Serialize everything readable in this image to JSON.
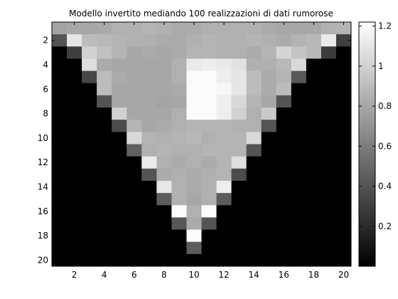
{
  "chart_data": {
    "type": "heatmap",
    "title": "Modello invertito mediando 100 realizzazioni di dati rumorose",
    "xlabel": "",
    "ylabel": "",
    "colormap": "gray",
    "nrows": 20,
    "ncols": 20,
    "xlim": [
      0.5,
      20.5
    ],
    "ylim": [
      0.5,
      20.5
    ],
    "y_axis_direction": "reversed",
    "x_ticks": [
      2,
      4,
      6,
      8,
      10,
      12,
      14,
      16,
      18,
      20
    ],
    "y_ticks": [
      2,
      4,
      6,
      8,
      10,
      12,
      14,
      16,
      18,
      20
    ],
    "clim": [
      0,
      1.22
    ],
    "colorbar": {
      "ticks": [
        0.2,
        0.4,
        0.6,
        0.8,
        1,
        1.2
      ],
      "placement": "right"
    },
    "values": [
      [
        0.78,
        0.8,
        0.8,
        0.82,
        0.84,
        0.84,
        0.86,
        0.84,
        0.82,
        0.82,
        0.84,
        0.84,
        0.84,
        0.84,
        0.82,
        0.8,
        0.8,
        0.8,
        0.84,
        0.86
      ],
      [
        0.4,
        1.1,
        0.9,
        0.88,
        0.86,
        0.84,
        0.84,
        0.82,
        0.82,
        0.84,
        0.86,
        0.84,
        0.84,
        0.86,
        0.84,
        0.82,
        0.86,
        0.88,
        1.12,
        0.3
      ],
      [
        0.0,
        0.3,
        1.0,
        0.92,
        0.86,
        0.8,
        0.82,
        0.8,
        0.82,
        0.86,
        0.86,
        0.84,
        0.84,
        0.82,
        0.86,
        1.02,
        0.94,
        0.88,
        0.28,
        0.0
      ],
      [
        0.0,
        0.0,
        1.06,
        0.82,
        0.8,
        0.8,
        0.8,
        0.8,
        0.84,
        1.12,
        1.14,
        1.12,
        1.08,
        0.84,
        0.84,
        0.88,
        1.04,
        0.0,
        0.0,
        0.0
      ],
      [
        0.0,
        0.0,
        0.34,
        0.9,
        0.82,
        0.8,
        0.8,
        0.8,
        0.84,
        1.2,
        1.2,
        1.14,
        1.1,
        0.9,
        0.82,
        0.86,
        0.42,
        0.0,
        0.0,
        0.0
      ],
      [
        0.0,
        0.0,
        0.0,
        0.9,
        0.8,
        0.8,
        0.8,
        0.8,
        0.82,
        1.2,
        1.2,
        1.18,
        1.1,
        0.9,
        0.82,
        0.9,
        0.0,
        0.0,
        0.0,
        0.0
      ],
      [
        0.0,
        0.0,
        0.0,
        0.4,
        0.8,
        0.8,
        0.8,
        0.78,
        0.8,
        1.2,
        1.2,
        1.14,
        1.04,
        0.86,
        0.8,
        0.4,
        0.0,
        0.0,
        0.0,
        0.0
      ],
      [
        0.0,
        0.0,
        0.0,
        0.0,
        1.0,
        0.8,
        0.8,
        0.8,
        0.84,
        1.2,
        1.2,
        1.14,
        1.0,
        0.84,
        0.96,
        0.0,
        0.0,
        0.0,
        0.0,
        0.0
      ],
      [
        0.0,
        0.0,
        0.0,
        0.0,
        0.36,
        0.86,
        0.8,
        0.82,
        0.84,
        0.86,
        0.86,
        0.86,
        0.84,
        0.84,
        0.4,
        0.0,
        0.0,
        0.0,
        0.0,
        0.0
      ],
      [
        0.0,
        0.0,
        0.0,
        0.0,
        0.0,
        1.04,
        0.86,
        0.84,
        0.86,
        0.88,
        0.84,
        0.86,
        0.86,
        1.04,
        0.0,
        0.0,
        0.0,
        0.0,
        0.0,
        0.0
      ],
      [
        0.0,
        0.0,
        0.0,
        0.0,
        0.0,
        0.46,
        0.84,
        0.86,
        0.84,
        0.84,
        0.86,
        0.86,
        0.86,
        0.4,
        0.0,
        0.0,
        0.0,
        0.0,
        0.0,
        0.0
      ],
      [
        0.0,
        0.0,
        0.0,
        0.0,
        0.0,
        0.0,
        1.12,
        0.84,
        0.82,
        0.84,
        0.82,
        0.86,
        1.06,
        0.0,
        0.0,
        0.0,
        0.0,
        0.0,
        0.0,
        0.0
      ],
      [
        0.0,
        0.0,
        0.0,
        0.0,
        0.0,
        0.0,
        0.4,
        0.82,
        0.84,
        0.82,
        0.84,
        0.86,
        0.36,
        0.0,
        0.0,
        0.0,
        0.0,
        0.0,
        0.0,
        0.0
      ],
      [
        0.0,
        0.0,
        0.0,
        0.0,
        0.0,
        0.0,
        0.0,
        1.1,
        0.84,
        0.82,
        0.84,
        1.14,
        0.0,
        0.0,
        0.0,
        0.0,
        0.0,
        0.0,
        0.0,
        0.0
      ],
      [
        0.0,
        0.0,
        0.0,
        0.0,
        0.0,
        0.0,
        0.0,
        0.44,
        0.84,
        0.8,
        0.84,
        0.44,
        0.0,
        0.0,
        0.0,
        0.0,
        0.0,
        0.0,
        0.0,
        0.0
      ],
      [
        0.0,
        0.0,
        0.0,
        0.0,
        0.0,
        0.0,
        0.0,
        0.0,
        1.2,
        0.84,
        1.2,
        0.0,
        0.0,
        0.0,
        0.0,
        0.0,
        0.0,
        0.0,
        0.0,
        0.0
      ],
      [
        0.0,
        0.0,
        0.0,
        0.0,
        0.0,
        0.0,
        0.0,
        0.0,
        0.42,
        0.82,
        0.4,
        0.0,
        0.0,
        0.0,
        0.0,
        0.0,
        0.0,
        0.0,
        0.0,
        0.0
      ],
      [
        0.0,
        0.0,
        0.0,
        0.0,
        0.0,
        0.0,
        0.0,
        0.0,
        0.0,
        1.2,
        0.0,
        0.0,
        0.0,
        0.0,
        0.0,
        0.0,
        0.0,
        0.0,
        0.0,
        0.0
      ],
      [
        0.0,
        0.0,
        0.0,
        0.0,
        0.0,
        0.0,
        0.0,
        0.0,
        0.0,
        0.44,
        0.0,
        0.0,
        0.0,
        0.0,
        0.0,
        0.0,
        0.0,
        0.0,
        0.0,
        0.0
      ],
      [
        0.0,
        0.0,
        0.0,
        0.0,
        0.0,
        0.0,
        0.0,
        0.0,
        0.0,
        0.0,
        0.0,
        0.0,
        0.0,
        0.0,
        0.0,
        0.0,
        0.0,
        0.0,
        0.0,
        0.0
      ]
    ]
  }
}
